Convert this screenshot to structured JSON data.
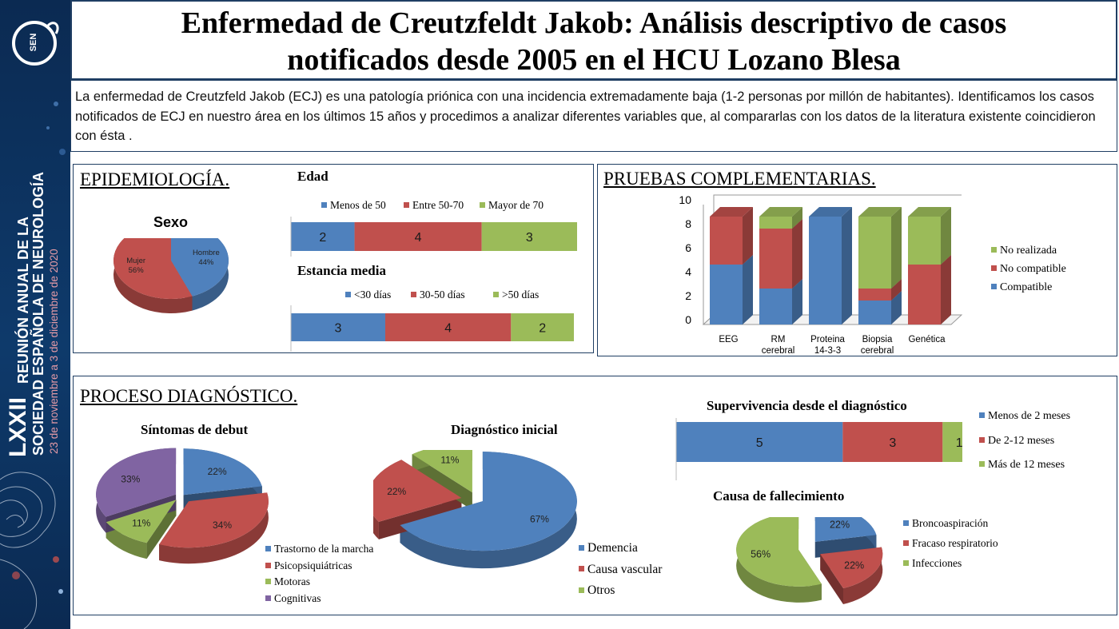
{
  "colors": {
    "blue": "#4f81bd",
    "red": "#c0504d",
    "green": "#9bbb59",
    "purple": "#8064a2",
    "navy": "#0e3a6b"
  },
  "sidebar": {
    "logo_text": "SEN",
    "event_line1": "LXXII",
    "event_line2": "REUNIÓN ANUAL DE LA",
    "event_line3": "SOCIEDAD ESPAÑOLA DE NEUROLOGÍA",
    "event_dates": "23 de noviembre a 3 de diciembre de 2020"
  },
  "header": {
    "title_line1": "Enfermedad de Creutzfeldt Jakob: Análisis descriptivo de casos",
    "title_line2": "notificados desde 2005 en el HCU Lozano Blesa"
  },
  "intro": {
    "text": "La enfermedad de Creutzfeld Jakob (ECJ) es una patología priónica con una incidencia extremadamente baja (1-2 personas por millón de habitantes). Identificamos los casos notificados de ECJ en nuestro área en los últimos 15 años y procedimos a analizar diferentes variables que, al compararlas con los datos de la literatura existente coincidieron con ésta ."
  },
  "sections": {
    "epidemiology": "EPIDEMIOLOGÍA.",
    "tests": "PRUEBAS COMPLEMENTARIAS.",
    "diagnosis": "PROCESO DIAGNÓSTICO."
  },
  "chart_data": [
    {
      "id": "sexo",
      "type": "pie",
      "title": "Sexo",
      "categories": [
        "Hombre",
        "Mujer"
      ],
      "values": [
        44,
        56
      ],
      "labels": [
        "44%",
        "56%"
      ],
      "colors": [
        "#4f81bd",
        "#c0504d"
      ]
    },
    {
      "id": "edad",
      "type": "bar",
      "orientation": "horizontal-stacked",
      "title": "Edad",
      "series": [
        {
          "name": "Menos de 50",
          "values": [
            2
          ],
          "color": "#4f81bd"
        },
        {
          "name": "Entre 50-70",
          "values": [
            4
          ],
          "color": "#c0504d"
        },
        {
          "name": "Mayor de 70",
          "values": [
            3
          ],
          "color": "#9bbb59"
        }
      ]
    },
    {
      "id": "estancia",
      "type": "bar",
      "orientation": "horizontal-stacked",
      "title": "Estancia media",
      "series": [
        {
          "name": "<30 días",
          "values": [
            3
          ],
          "color": "#4f81bd"
        },
        {
          "name": "30-50 días",
          "values": [
            4
          ],
          "color": "#c0504d"
        },
        {
          "name": ">50 días",
          "values": [
            2
          ],
          "color": "#9bbb59"
        }
      ]
    },
    {
      "id": "pruebas",
      "type": "bar",
      "orientation": "vertical-stacked-3d",
      "categories": [
        "EEG",
        "RM cerebral",
        "Proteína 14-3-3",
        "Biopsia cerebral",
        "Genética"
      ],
      "category_lines": [
        [
          "EEG"
        ],
        [
          "RM",
          "cerebral"
        ],
        [
          "Proteina",
          "14-3-3"
        ],
        [
          "Biopsia",
          "cerebral"
        ],
        [
          "Genética"
        ]
      ],
      "series": [
        {
          "name": "Compatible",
          "values": [
            5,
            3,
            9,
            2,
            0
          ],
          "color": "#4f81bd"
        },
        {
          "name": "No compatible",
          "values": [
            4,
            5,
            0,
            1,
            5
          ],
          "color": "#c0504d"
        },
        {
          "name": "No realizada",
          "values": [
            0,
            1,
            0,
            6,
            4
          ],
          "color": "#9bbb59"
        }
      ],
      "ylim": [
        0,
        10
      ],
      "yticks": [
        "0",
        "2",
        "4",
        "6",
        "8",
        "10"
      ],
      "grid": false,
      "legend_position": "right"
    },
    {
      "id": "sintomas",
      "type": "pie",
      "title": "Síntomas de debut",
      "categories": [
        "Trastorno de la marcha",
        "Psicopsiquiátricas",
        "Motoras",
        "Cognitivas"
      ],
      "values": [
        22,
        34,
        11,
        33
      ],
      "labels": [
        "22%",
        "34%",
        "11%",
        "33%"
      ],
      "colors": [
        "#4f81bd",
        "#c0504d",
        "#9bbb59",
        "#8064a2"
      ],
      "legend_position": "bottom-right"
    },
    {
      "id": "diag_inicial",
      "type": "pie",
      "title": "Diagnóstico inicial",
      "categories": [
        "Demencia",
        "Causa vascular",
        "Otros"
      ],
      "values": [
        67,
        22,
        11
      ],
      "labels": [
        "67%",
        "22%",
        "11%"
      ],
      "colors": [
        "#4f81bd",
        "#c0504d",
        "#9bbb59"
      ],
      "legend_position": "bottom-right"
    },
    {
      "id": "supervivencia",
      "type": "bar",
      "orientation": "horizontal-stacked",
      "title": "Supervivencia desde el diagnóstico",
      "series": [
        {
          "name": "Menos de 2 meses",
          "values": [
            5
          ],
          "color": "#4f81bd"
        },
        {
          "name": "De 2-12 meses",
          "values": [
            3
          ],
          "color": "#c0504d"
        },
        {
          "name": "Más de 12 meses",
          "values": [
            1
          ],
          "color": "#9bbb59"
        }
      ],
      "legend_position": "right"
    },
    {
      "id": "fallecimiento",
      "type": "pie",
      "title": "Causa de fallecimiento",
      "categories": [
        "Broncoaspiración",
        "Fracaso respiratorio",
        "Infecciones"
      ],
      "values": [
        22,
        22,
        56
      ],
      "labels": [
        "22%",
        "22%",
        "56%"
      ],
      "colors": [
        "#4f81bd",
        "#c0504d",
        "#9bbb59"
      ],
      "legend_position": "right"
    }
  ]
}
